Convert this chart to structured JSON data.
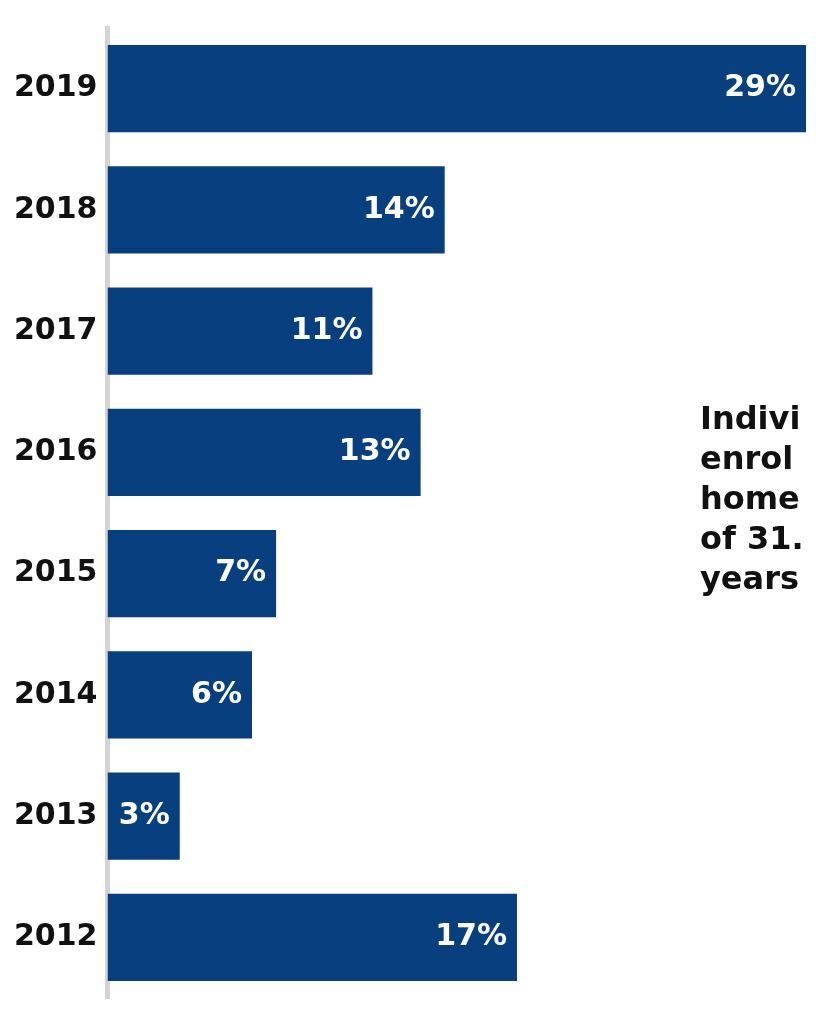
{
  "chart_data": {
    "type": "bar",
    "orientation": "horizontal",
    "categories": [
      "2019",
      "2018",
      "2017",
      "2016",
      "2015",
      "2014",
      "2013",
      "2012"
    ],
    "values": [
      29,
      14,
      11,
      13,
      7,
      6,
      3,
      17
    ],
    "value_labels": [
      "29%",
      "14%",
      "11%",
      "13%",
      "7%",
      "6%",
      "3%",
      "17%"
    ],
    "color": "#083f7f",
    "tick_labels": "y",
    "legend": false,
    "annotations": [
      "Indivi\nenrol\nhome\nof 31.\nyears"
    ]
  }
}
